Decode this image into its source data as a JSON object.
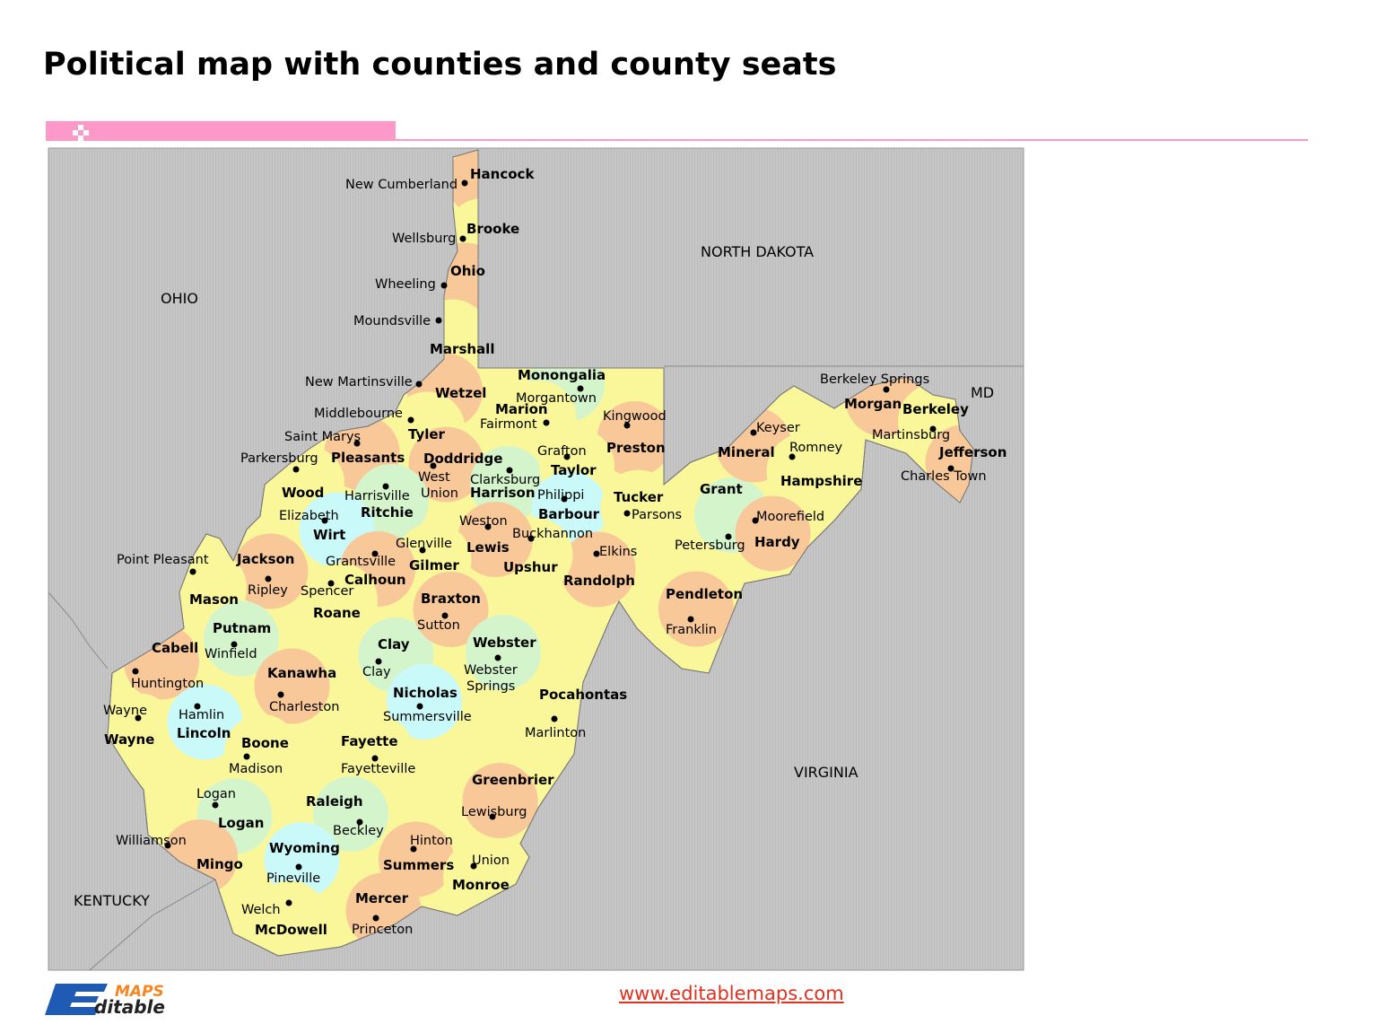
{
  "title": "Political map with counties and county seats",
  "footer": {
    "url": "www.editablemaps.com",
    "logo_text": "Editable MAPS"
  },
  "colors": {
    "accent_pink": "#fd99c9",
    "background_region": "#c4c4c4",
    "yellow": "#f9f79a",
    "orange": "#f8c898",
    "green": "#d4f5cc",
    "cyan": "#c9f9f9",
    "url": "#e0301e"
  },
  "neighbors": [
    "OHIO",
    "NORTH DAKOTA",
    "VIRGINIA",
    "KENTUCKY",
    "MD"
  ],
  "counties": [
    {
      "name": "Hancock",
      "seat": "New Cumberland",
      "color": "orange"
    },
    {
      "name": "Brooke",
      "seat": "Wellsburg",
      "color": "yellow"
    },
    {
      "name": "Ohio",
      "seat": "Wheeling",
      "color": "orange"
    },
    {
      "name": "Marshall",
      "seat": "Moundsville",
      "color": "yellow"
    },
    {
      "name": "Wetzel",
      "seat": "New Martinsville",
      "color": "orange"
    },
    {
      "name": "Monongalia",
      "seat": "Morgantown",
      "color": "green"
    },
    {
      "name": "Marion",
      "seat": "Fairmont",
      "color": "yellow"
    },
    {
      "name": "Preston",
      "seat": "Kingwood",
      "color": "orange"
    },
    {
      "name": "Tyler",
      "seat": "Middlebourne",
      "color": "yellow"
    },
    {
      "name": "Pleasants",
      "seat": "Saint Marys",
      "color": "orange"
    },
    {
      "name": "Wood",
      "seat": "Parkersburg",
      "color": "yellow"
    },
    {
      "name": "Doddridge",
      "seat": "West Union",
      "color": "orange"
    },
    {
      "name": "Harrison",
      "seat": "Clarksburg",
      "color": "green"
    },
    {
      "name": "Taylor",
      "seat": "Grafton",
      "color": "yellow"
    },
    {
      "name": "Ritchie",
      "seat": "Harrisville",
      "color": "green"
    },
    {
      "name": "Wirt",
      "seat": "Elizabeth",
      "color": "cyan"
    },
    {
      "name": "Barbour",
      "seat": "Philippi",
      "color": "cyan"
    },
    {
      "name": "Tucker",
      "seat": "Parsons",
      "color": "yellow"
    },
    {
      "name": "Grant",
      "seat": "Petersburg",
      "color": "green"
    },
    {
      "name": "Mineral",
      "seat": "Keyser",
      "color": "orange"
    },
    {
      "name": "Hampshire",
      "seat": "Romney",
      "color": "yellow"
    },
    {
      "name": "Morgan",
      "seat": "Berkeley Springs",
      "color": "orange"
    },
    {
      "name": "Berkeley",
      "seat": "Martinsburg",
      "color": "yellow"
    },
    {
      "name": "Jefferson",
      "seat": "Charles Town",
      "color": "orange"
    },
    {
      "name": "Hardy",
      "seat": "Moorefield",
      "color": "orange"
    },
    {
      "name": "Pendleton",
      "seat": "Franklin",
      "color": "orange"
    },
    {
      "name": "Randolph",
      "seat": "Elkins",
      "color": "orange"
    },
    {
      "name": "Upshur",
      "seat": "Buckhannon",
      "color": "yellow"
    },
    {
      "name": "Lewis",
      "seat": "Weston",
      "color": "orange"
    },
    {
      "name": "Gilmer",
      "seat": "Glenville",
      "color": "yellow"
    },
    {
      "name": "Calhoun",
      "seat": "Grantsville",
      "color": "orange"
    },
    {
      "name": "Roane",
      "seat": "Spencer",
      "color": "yellow"
    },
    {
      "name": "Jackson",
      "seat": "Ripley",
      "color": "orange"
    },
    {
      "name": "Mason",
      "seat": "Point Pleasant",
      "color": "yellow"
    },
    {
      "name": "Putnam",
      "seat": "Winfield",
      "color": "green"
    },
    {
      "name": "Cabell",
      "seat": "Huntington",
      "color": "orange"
    },
    {
      "name": "Wayne",
      "seat": "Wayne",
      "color": "yellow"
    },
    {
      "name": "Lincoln",
      "seat": "Hamlin",
      "color": "cyan"
    },
    {
      "name": "Kanawha",
      "seat": "Charleston",
      "color": "orange"
    },
    {
      "name": "Clay",
      "seat": "Clay",
      "color": "green"
    },
    {
      "name": "Braxton",
      "seat": "Sutton",
      "color": "orange"
    },
    {
      "name": "Webster",
      "seat": "Webster Springs",
      "color": "green"
    },
    {
      "name": "Nicholas",
      "seat": "Summersville",
      "color": "cyan"
    },
    {
      "name": "Pocahontas",
      "seat": "Marlinton",
      "color": "yellow"
    },
    {
      "name": "Boone",
      "seat": "Madison",
      "color": "yellow"
    },
    {
      "name": "Fayette",
      "seat": "Fayetteville",
      "color": "yellow"
    },
    {
      "name": "Logan",
      "seat": "Logan",
      "color": "green"
    },
    {
      "name": "Mingo",
      "seat": "Williamson",
      "color": "orange"
    },
    {
      "name": "Raleigh",
      "seat": "Beckley",
      "color": "green"
    },
    {
      "name": "Greenbrier",
      "seat": "Lewisburg",
      "color": "orange"
    },
    {
      "name": "Wyoming",
      "seat": "Pineville",
      "color": "cyan"
    },
    {
      "name": "Summers",
      "seat": "Hinton",
      "color": "orange"
    },
    {
      "name": "Monroe",
      "seat": "Union",
      "color": "yellow"
    },
    {
      "name": "Mercer",
      "seat": "Princeton",
      "color": "orange"
    },
    {
      "name": "McDowell",
      "seat": "Welch",
      "color": "yellow"
    }
  ]
}
